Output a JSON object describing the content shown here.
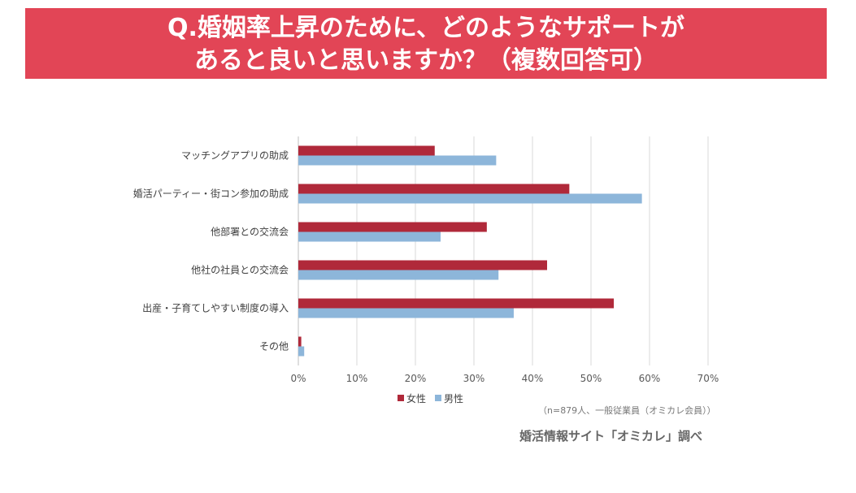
{
  "header": {
    "line1": "Q.婚姻率上昇のために、どのようなサポートが",
    "line2": "あると良いと思いますか？（複数回答可）"
  },
  "colors": {
    "banner": "#e24556",
    "female": "#b0293a",
    "male": "#8db6da",
    "grid": "#d9d9d9"
  },
  "chart_data": {
    "type": "bar",
    "orientation": "horizontal",
    "categories": [
      "マッチングアプリの助成",
      "婚活パーティー・街コン参加の助成",
      "他部署との交流会",
      "他社の社員との交流会",
      "出産・子育てしやすい制度の導入",
      "その他"
    ],
    "series": [
      {
        "name": "女性",
        "values": [
          23.3,
          46.3,
          32.2,
          42.5,
          53.9,
          0.5
        ]
      },
      {
        "name": "男性",
        "values": [
          33.8,
          58.7,
          24.3,
          34.2,
          36.8,
          1.0
        ]
      }
    ],
    "xlim": [
      0,
      70
    ],
    "xticks": [
      "0%",
      "10%",
      "20%",
      "30%",
      "40%",
      "50%",
      "60%",
      "70%"
    ],
    "grid": true,
    "legend": "bottom"
  },
  "note": "（n=879人、一般従業員（オミカレ会員））",
  "source": "婚活情報サイト「オミカレ」調べ"
}
